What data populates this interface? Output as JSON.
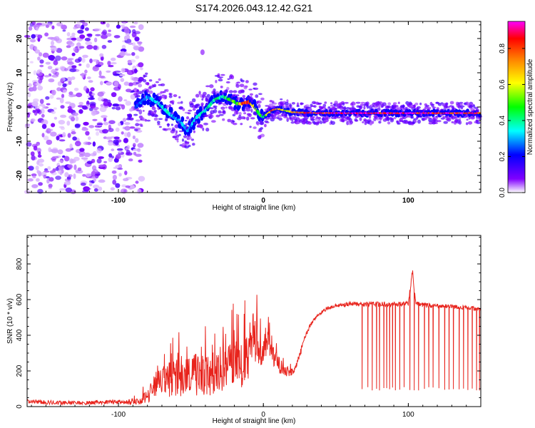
{
  "title": "S174.2026.043.12.42.G21",
  "chart_data": [
    {
      "type": "heatmap",
      "xlabel": "Height of straight line (km)",
      "ylabel": "Frequency (Hz)",
      "xlim": [
        -163,
        150
      ],
      "ylim": [
        -25,
        25
      ],
      "xticks": [
        -100,
        0,
        100
      ],
      "yticks": [
        -20,
        -10,
        0,
        10,
        20
      ],
      "grid": false,
      "colorbar": {
        "label": "Normalized spectral amplitude",
        "range": [
          0.0,
          0.95
        ],
        "ticks": [
          0.0,
          0.2,
          0.4,
          0.6,
          0.8
        ],
        "colormap": [
          "#ffffff",
          "#8000ff",
          "#0000ff",
          "#00ffff",
          "#00ff00",
          "#ffff00",
          "#ff8000",
          "#ff0000",
          "#ff00ff"
        ]
      },
      "noise_region_x": [
        -163,
        -88
      ],
      "ridge": {
        "x": [
          -88,
          -80,
          -72,
          -65,
          -58,
          -52,
          -46,
          -40,
          -34,
          -28,
          -22,
          -18,
          -14,
          -10,
          -6,
          -3,
          0,
          3,
          6,
          10,
          15,
          20,
          30,
          40,
          60,
          80,
          100,
          120,
          135,
          150
        ],
        "y": [
          0,
          3,
          1,
          -2,
          -4,
          -7,
          -3,
          -1,
          2,
          3,
          2,
          1,
          1,
          1.5,
          0,
          -2,
          -3,
          -2,
          -1,
          -0.5,
          -1,
          -1.5,
          -1.7,
          -1.8,
          -1.8,
          -1.8,
          -1.8,
          -1.8,
          -1.8,
          -1.8
        ],
        "amplitude": [
          0.25,
          0.3,
          0.35,
          0.35,
          0.3,
          0.3,
          0.35,
          0.35,
          0.4,
          0.4,
          0.45,
          0.55,
          0.75,
          0.8,
          0.6,
          0.5,
          0.4,
          0.6,
          0.8,
          0.75,
          0.55,
          0.7,
          0.8,
          0.85,
          0.9,
          0.88,
          0.88,
          0.88,
          0.88,
          0.85
        ]
      }
    },
    {
      "type": "line",
      "xlabel": "Height of straight line (km)",
      "ylabel": "SNR (10 * v/v)",
      "xlim": [
        -163,
        150
      ],
      "ylim": [
        0,
        960
      ],
      "xticks": [
        -100,
        0,
        100
      ],
      "yticks": [
        0,
        200,
        400,
        600,
        800
      ],
      "grid": false,
      "series": [
        {
          "color": "#e8231c",
          "x": [
            -163,
            -150,
            -130,
            -110,
            -95,
            -85,
            -80,
            -75,
            -70,
            -65,
            -60,
            -55,
            -50,
            -45,
            -40,
            -35,
            -30,
            -25,
            -20,
            -15,
            -10,
            -7,
            -5,
            -3,
            0,
            3,
            5,
            8,
            10,
            13,
            16,
            19,
            22,
            25,
            28,
            32,
            36,
            40,
            45,
            50,
            55,
            60,
            65,
            70,
            80,
            90,
            100,
            103,
            105,
            110,
            120,
            130,
            140,
            150
          ],
          "y": [
            30,
            25,
            20,
            25,
            25,
            30,
            60,
            120,
            140,
            150,
            170,
            160,
            180,
            175,
            170,
            190,
            200,
            230,
            250,
            230,
            300,
            420,
            330,
            310,
            320,
            340,
            300,
            260,
            240,
            220,
            200,
            190,
            210,
            280,
            380,
            450,
            500,
            530,
            555,
            565,
            570,
            575,
            575,
            575,
            575,
            575,
            575,
            760,
            580,
            570,
            565,
            560,
            555,
            545
          ],
          "noise": [
            12,
            12,
            10,
            12,
            14,
            20,
            40,
            70,
            90,
            100,
            110,
            110,
            120,
            120,
            120,
            120,
            130,
            130,
            140,
            140,
            150,
            160,
            150,
            120,
            100,
            90,
            80,
            60,
            50,
            40,
            30,
            25,
            25,
            20,
            15,
            12,
            10,
            10,
            10,
            10,
            10,
            12,
            12,
            12,
            14,
            14,
            14,
            30,
            14,
            12,
            12,
            12,
            12,
            12
          ],
          "dropouts": [
            68,
            72,
            75,
            78,
            80,
            83,
            85,
            87,
            89,
            91,
            94,
            97,
            101,
            104,
            107,
            111,
            114,
            117,
            121,
            125,
            128,
            131,
            135,
            138,
            141,
            144,
            147,
            149
          ]
        }
      ]
    }
  ]
}
